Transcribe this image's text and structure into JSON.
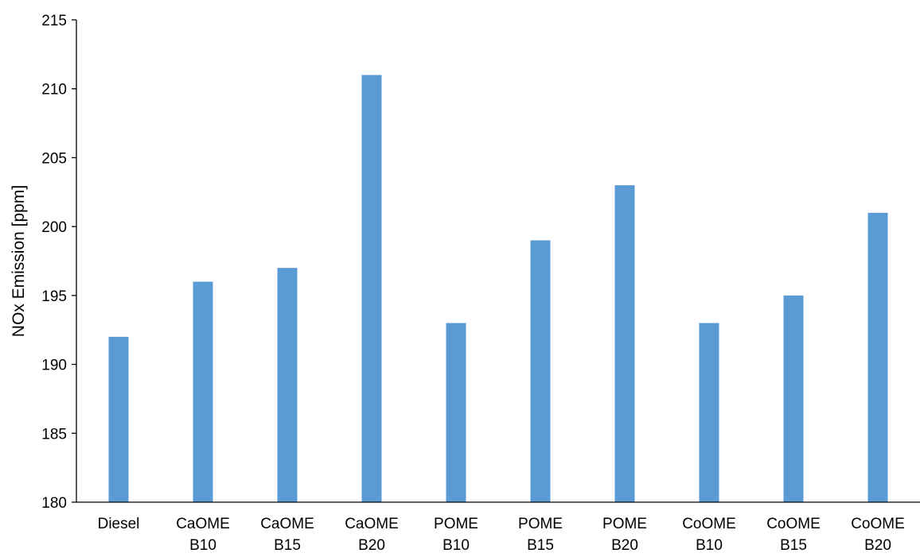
{
  "chart_data": {
    "type": "bar",
    "categories": [
      [
        "Diesel"
      ],
      [
        "CaOME",
        "B10"
      ],
      [
        "CaOME",
        "B15"
      ],
      [
        "CaOME",
        "B20"
      ],
      [
        "POME",
        "B10"
      ],
      [
        "POME",
        "B15"
      ],
      [
        "POME",
        "B20"
      ],
      [
        "CoOME",
        "B10"
      ],
      [
        "CoOME",
        "B15"
      ],
      [
        "CoOME",
        "B20"
      ]
    ],
    "values": [
      192,
      196,
      197,
      211,
      193,
      199,
      203,
      193,
      195,
      201
    ],
    "title": "",
    "xlabel": "",
    "ylabel": "NOx Emission [ppm]",
    "ylim": [
      180,
      215
    ],
    "yticks": [
      "180",
      "185",
      "190",
      "195",
      "200",
      "205",
      "210",
      "215"
    ],
    "grid": false,
    "bar_color": "#5B9BD5",
    "axis_color": "#000000"
  }
}
